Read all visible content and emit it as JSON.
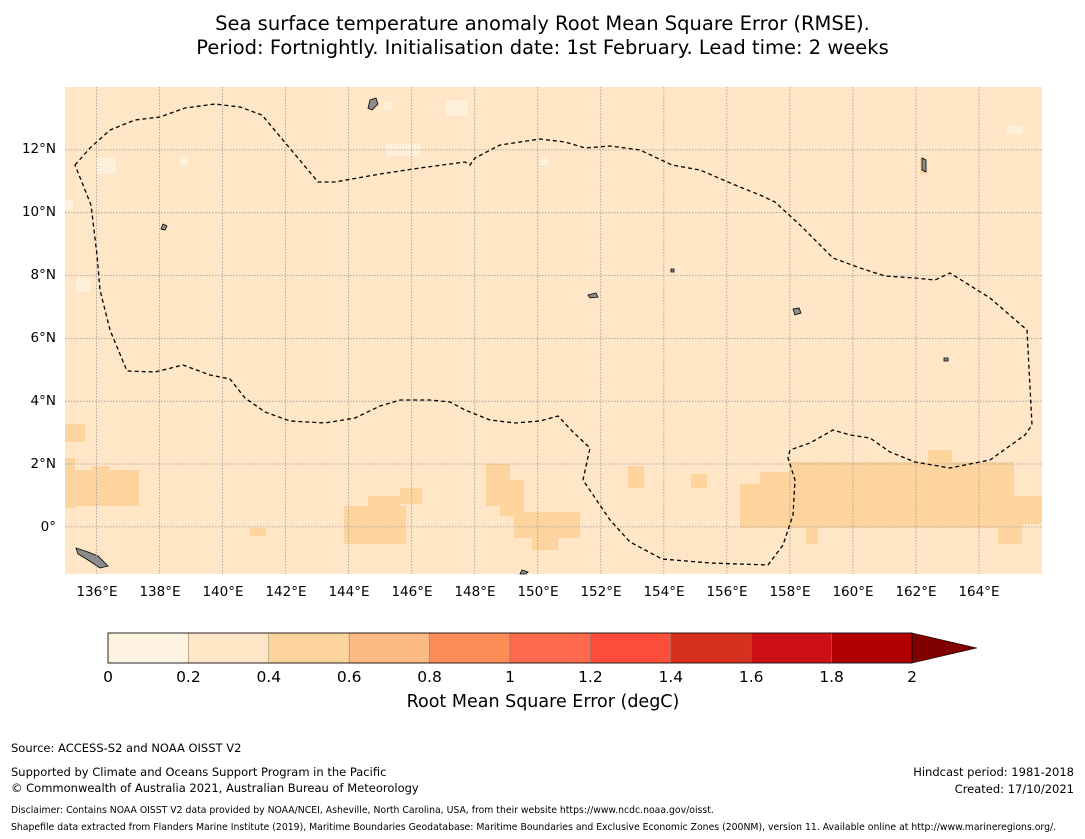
{
  "title": {
    "line1": "Sea surface temperature anomaly Root Mean Square Error (RMSE).",
    "line2": "Period: Fortnightly. Initialisation date: 1st February. Lead time: 2 weeks"
  },
  "map": {
    "lon_ticks": [
      "136°E",
      "138°E",
      "140°E",
      "142°E",
      "144°E",
      "146°E",
      "148°E",
      "150°E",
      "152°E",
      "154°E",
      "156°E",
      "158°E",
      "160°E",
      "162°E",
      "164°E"
    ],
    "lat_ticks": [
      "12°N",
      "10°N",
      "8°N",
      "6°N",
      "4°N",
      "2°N",
      "0°"
    ],
    "lon_range": [
      135.0,
      166.0
    ],
    "lat_range": [
      -1.5,
      14.0
    ],
    "colors": {
      "ocean_base": "#fee6c6",
      "moderate": "#fdd49e",
      "low": "#fff0db",
      "land": "#8c8c8c",
      "grid": "#9a9a9a",
      "boundary": "#000000"
    }
  },
  "colorbar": {
    "label": "Root Mean Square Error (degC)",
    "ticks": [
      "0",
      "0.2",
      "0.4",
      "0.6",
      "0.8",
      "1",
      "1.2",
      "1.4",
      "1.6",
      "1.8",
      "2"
    ],
    "colors": [
      "#fff3e1",
      "#fee6c6",
      "#fdd49e",
      "#fdbb84",
      "#fc8d59",
      "#ff6a4d",
      "#fc4e3a",
      "#d7301f",
      "#cc1016",
      "#b00000"
    ],
    "extend_color": "#7f0000"
  },
  "footer": {
    "source": "Source: ACCESS-S2 and NOAA OISST V2",
    "supported": "Supported by Climate and Oceans Support Program in the Pacific",
    "copyright": "© Commonwealth of Australia 2021, Australian Bureau of Meteorology",
    "hindcast": "Hindcast period: 1981-2018",
    "created": "Created: 17/10/2021",
    "disclaimer": "Disclaimer: Contains NOAA OISST V2 data provided by NOAA/NCEI, Asheville, North Carolina, USA, from their website https://www.ncdc.noaa.gov/oisst.",
    "shapefile": "Shapefile data extracted from Flanders Marine Institute (2019), Maritime Boundaries Geodatabase: Maritime Boundaries and Exclusive Economic Zones (200NM), version 11. Available online at http://www.marineregions.org/."
  }
}
